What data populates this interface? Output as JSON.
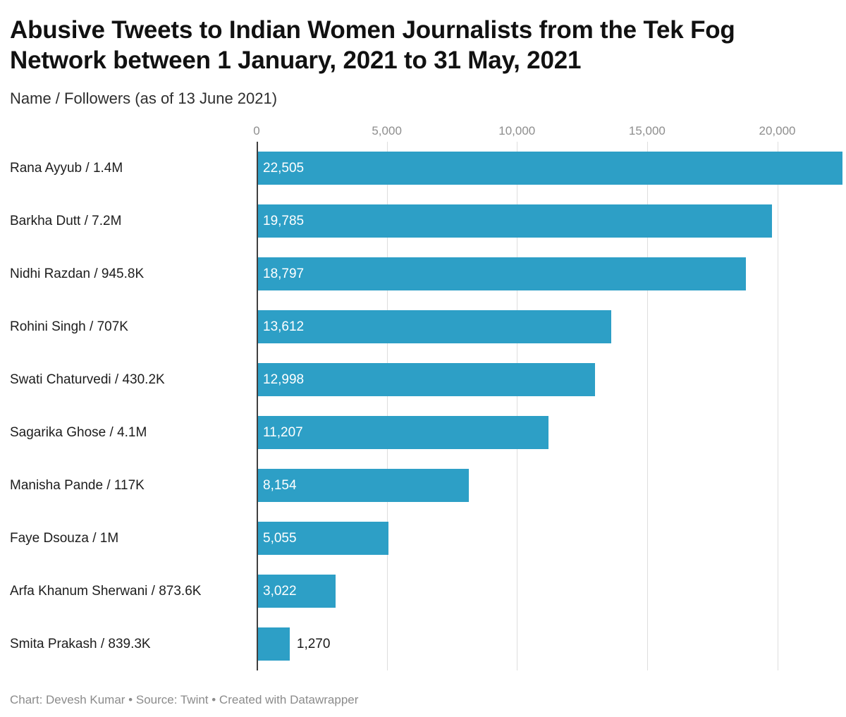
{
  "header": {
    "title": "Abusive Tweets to Indian Women Journalists from the Tek Fog Network between 1 January, 2021 to 31 May, 2021",
    "subtitle": "Name / Followers (as of 13 June 2021)"
  },
  "footer": {
    "credits": "Chart: Devesh Kumar • Source: Twint • Created with Datawrapper"
  },
  "chart_data": {
    "type": "bar",
    "orientation": "horizontal",
    "title": "Abusive Tweets to Indian Women Journalists from the Tek Fog Network between 1 January, 2021 to 31 May, 2021",
    "subtitle": "Name / Followers (as of 13 June 2021)",
    "categories": [
      "Rana Ayyub / 1.4M",
      "Barkha Dutt / 7.2M",
      "Nidhi Razdan / 945.8K",
      "Rohini Singh / 707K",
      "Swati Chaturvedi / 430.2K",
      "Sagarika Ghose / 4.1M",
      "Manisha Pande / 117K",
      "Faye Dsouza / 1M",
      "Arfa Khanum Sherwani / 873.6K",
      "Smita Prakash / 839.3K"
    ],
    "values": [
      22505,
      19785,
      18797,
      13612,
      12998,
      11207,
      8154,
      5055,
      3022,
      1270
    ],
    "value_labels": [
      "22,505",
      "19,785",
      "18,797",
      "13,612",
      "12,998",
      "11,207",
      "8,154",
      "5,055",
      "3,022",
      "1,270"
    ],
    "x_ticks": [
      0,
      5000,
      10000,
      15000,
      20000
    ],
    "x_tick_labels": [
      "0",
      "5,000",
      "10,000",
      "15,000",
      "20,000"
    ],
    "xlim": [
      0,
      22505
    ],
    "grid": true,
    "legend": "none",
    "bar_color": "#2d9fc6",
    "inside_label_min": 2000
  }
}
